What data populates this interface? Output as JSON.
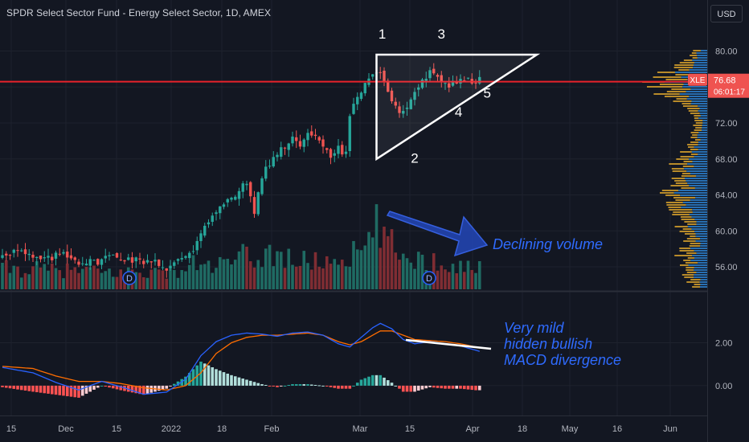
{
  "header": {
    "title": "SPDR Select Sector Fund - Energy Select Sector, 1D, AMEX",
    "currency_button": "USD"
  },
  "colors": {
    "background": "#131722",
    "up": "#26a69a",
    "down": "#ef5350",
    "volume_up": "#1f6b63",
    "volume_down": "#7f2d33",
    "resistance": "#e8222b",
    "annotation": "#2962ff",
    "macd_line": "#2962ff",
    "signal_line": "#ff6d00",
    "profile_blue": "#2b79c2",
    "profile_orange": "#d6a02c"
  },
  "chart_data": [
    {
      "type": "candlestick",
      "symbol": "XLE",
      "price_scale": {
        "ticks": [
          "56.00",
          "60.00",
          "64.00",
          "68.00",
          "72.00",
          "76.00",
          "80.00"
        ],
        "ylim": [
          53.5,
          83
        ]
      },
      "time_axis": {
        "labels": [
          "15",
          "Dec",
          "15",
          "2022",
          "18",
          "Feb",
          "Mar",
          "15",
          "Apr",
          "18",
          "May",
          "16",
          "Jun"
        ]
      },
      "last_price": {
        "value": "76.68",
        "countdown": "06:01:17",
        "label": "XLE"
      },
      "resistance_level": 76.6,
      "series": {
        "trend": [
          [
            0,
            57.5
          ],
          [
            4,
            57.8
          ],
          [
            8,
            56.9
          ],
          [
            12,
            56.8
          ],
          [
            16,
            57.6
          ],
          [
            20,
            56.6
          ],
          [
            24,
            56.5
          ],
          [
            28,
            57.2
          ],
          [
            32,
            57.0
          ],
          [
            36,
            56.6
          ],
          [
            40,
            56.8
          ],
          [
            43,
            55.5
          ],
          [
            46,
            56.7
          ],
          [
            50,
            58.0
          ],
          [
            53,
            60.8
          ],
          [
            57,
            62.5
          ],
          [
            61,
            64.0
          ],
          [
            64,
            65.3
          ],
          [
            66,
            62.3
          ],
          [
            69,
            67.2
          ],
          [
            72,
            68.5
          ],
          [
            76,
            70.5
          ],
          [
            78,
            69.5
          ],
          [
            81,
            71.0
          ],
          [
            84,
            69.5
          ],
          [
            86,
            68.2
          ],
          [
            88,
            69.2
          ],
          [
            90,
            68.5
          ],
          [
            91,
            72.5
          ],
          [
            93,
            75.0
          ],
          [
            96,
            77.2
          ],
          [
            98,
            78.0
          ],
          [
            100,
            77.0
          ],
          [
            101,
            75.3
          ],
          [
            104,
            73.0
          ],
          [
            106,
            73.8
          ],
          [
            108,
            75.5
          ],
          [
            110,
            76.5
          ],
          [
            112,
            77.6
          ],
          [
            114,
            76.8
          ],
          [
            117,
            76.3
          ],
          [
            120,
            77.0
          ],
          [
            123,
            76.5
          ],
          [
            125,
            76.68
          ]
        ],
        "volume_trend": [
          [
            0,
            2.2
          ],
          [
            5,
            2.0
          ],
          [
            10,
            2.1
          ],
          [
            15,
            1.9
          ],
          [
            20,
            2.0
          ],
          [
            25,
            1.8
          ],
          [
            30,
            1.7
          ],
          [
            35,
            1.9
          ],
          [
            40,
            1.8
          ],
          [
            45,
            1.6
          ],
          [
            50,
            2.6
          ],
          [
            55,
            2.4
          ],
          [
            60,
            2.7
          ],
          [
            63,
            3.4
          ],
          [
            66,
            3.0
          ],
          [
            70,
            3.8
          ],
          [
            75,
            3.2
          ],
          [
            80,
            2.8
          ],
          [
            85,
            3.0
          ],
          [
            90,
            3.3
          ],
          [
            93,
            3.8
          ],
          [
            96,
            4.5
          ],
          [
            98,
            6.5
          ],
          [
            100,
            5.5
          ],
          [
            103,
            4.0
          ],
          [
            106,
            3.5
          ],
          [
            110,
            3.0
          ],
          [
            114,
            2.8
          ],
          [
            118,
            2.6
          ],
          [
            122,
            2.4
          ],
          [
            125,
            2.1
          ]
        ],
        "macd_line": [
          [
            0,
            0.85
          ],
          [
            8,
            0.6
          ],
          [
            14,
            0.15
          ],
          [
            20,
            -0.2
          ],
          [
            26,
            0.2
          ],
          [
            31,
            -0.05
          ],
          [
            37,
            -0.4
          ],
          [
            43,
            -0.3
          ],
          [
            48,
            0.3
          ],
          [
            52,
            1.4
          ],
          [
            56,
            2.05
          ],
          [
            60,
            2.35
          ],
          [
            64,
            2.45
          ],
          [
            68,
            2.4
          ],
          [
            72,
            2.3
          ],
          [
            76,
            2.45
          ],
          [
            80,
            2.5
          ],
          [
            84,
            2.35
          ],
          [
            88,
            1.95
          ],
          [
            91,
            1.8
          ],
          [
            94,
            2.25
          ],
          [
            97,
            2.7
          ],
          [
            99,
            2.9
          ],
          [
            102,
            2.65
          ],
          [
            105,
            2.15
          ],
          [
            108,
            1.95
          ],
          [
            112,
            2.05
          ],
          [
            116,
            1.95
          ],
          [
            120,
            1.85
          ],
          [
            124,
            1.65
          ],
          [
            125,
            1.6
          ]
        ],
        "signal_line": [
          [
            0,
            0.9
          ],
          [
            8,
            0.8
          ],
          [
            14,
            0.45
          ],
          [
            20,
            0.2
          ],
          [
            26,
            0.2
          ],
          [
            31,
            0.1
          ],
          [
            37,
            -0.1
          ],
          [
            43,
            -0.2
          ],
          [
            48,
            0.0
          ],
          [
            52,
            0.6
          ],
          [
            56,
            1.5
          ],
          [
            60,
            2.0
          ],
          [
            64,
            2.25
          ],
          [
            68,
            2.35
          ],
          [
            72,
            2.35
          ],
          [
            76,
            2.4
          ],
          [
            80,
            2.45
          ],
          [
            84,
            2.35
          ],
          [
            88,
            2.05
          ],
          [
            91,
            1.9
          ],
          [
            94,
            2.05
          ],
          [
            97,
            2.35
          ],
          [
            99,
            2.55
          ],
          [
            102,
            2.55
          ],
          [
            105,
            2.35
          ],
          [
            108,
            2.15
          ],
          [
            112,
            2.1
          ],
          [
            116,
            2.05
          ],
          [
            120,
            1.95
          ],
          [
            124,
            1.8
          ],
          [
            125,
            1.75
          ]
        ]
      },
      "dividend_markers": [
        "D",
        "D"
      ],
      "annotations": {
        "triangle_points": [
          "1",
          "2",
          "3",
          "4",
          "5"
        ],
        "volume_note": "Declining volume",
        "macd_note": [
          "Very mild",
          "hidden bullish",
          "MACD divergence"
        ]
      }
    },
    {
      "type": "line",
      "name": "MACD",
      "ticks": [
        "0.00",
        "2.00"
      ],
      "ylim": [
        -1.2,
        4.3
      ]
    }
  ]
}
